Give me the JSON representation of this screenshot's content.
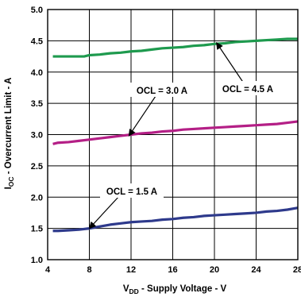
{
  "chart_data": {
    "type": "line",
    "xlabel": {
      "main": "V",
      "sub": "DD",
      "rest": " - Supply Voltage - V"
    },
    "ylabel": {
      "main": "I",
      "sub": "OC",
      "rest": " - Overcurrent Limit - A"
    },
    "xlim": [
      4,
      28
    ],
    "ylim": [
      1.0,
      5.0
    ],
    "x_ticks": [
      4,
      8,
      12,
      16,
      20,
      24,
      28
    ],
    "y_ticks": [
      1.0,
      1.5,
      2.0,
      2.5,
      3.0,
      3.5,
      4.0,
      4.5,
      5.0
    ],
    "x_tick_labels": [
      "4",
      "8",
      "12",
      "16",
      "20",
      "24",
      "28"
    ],
    "y_tick_labels": [
      "1.0",
      "1.5",
      "2.0",
      "2.5",
      "3.0",
      "3.5",
      "4.0",
      "4.5",
      "5.0"
    ],
    "grid": true,
    "series": [
      {
        "color": "#1e9a4e",
        "x": [
          4.5,
          5,
          6,
          7,
          7.5,
          8,
          9,
          10,
          11,
          12,
          13,
          14,
          15,
          16,
          17,
          18,
          19,
          20,
          21,
          22,
          23,
          24,
          25,
          26,
          27,
          28
        ],
        "y": [
          4.25,
          4.25,
          4.25,
          4.25,
          4.25,
          4.27,
          4.28,
          4.3,
          4.31,
          4.33,
          4.34,
          4.36,
          4.38,
          4.39,
          4.4,
          4.42,
          4.43,
          4.45,
          4.46,
          4.48,
          4.49,
          4.5,
          4.51,
          4.52,
          4.53,
          4.53
        ]
      },
      {
        "color": "#b41f86",
        "x": [
          4.5,
          5,
          6,
          7,
          8,
          9,
          10,
          11,
          12,
          13,
          14,
          15,
          16,
          17,
          18,
          19,
          20,
          21,
          22,
          23,
          24,
          25,
          26,
          27,
          28
        ],
        "y": [
          2.85,
          2.87,
          2.88,
          2.9,
          2.92,
          2.94,
          2.96,
          2.98,
          3.0,
          3.02,
          3.03,
          3.05,
          3.06,
          3.08,
          3.09,
          3.1,
          3.11,
          3.12,
          3.13,
          3.14,
          3.15,
          3.16,
          3.17,
          3.19,
          3.21
        ]
      },
      {
        "color": "#2e3a8c",
        "x": [
          4.5,
          5,
          6,
          7,
          8,
          9,
          10,
          11,
          12,
          13,
          14,
          15,
          16,
          17,
          18,
          19,
          20,
          21,
          22,
          23,
          24,
          25,
          26,
          27,
          28
        ],
        "y": [
          1.46,
          1.46,
          1.47,
          1.48,
          1.5,
          1.53,
          1.56,
          1.58,
          1.6,
          1.61,
          1.62,
          1.64,
          1.65,
          1.67,
          1.68,
          1.7,
          1.71,
          1.72,
          1.73,
          1.74,
          1.75,
          1.77,
          1.78,
          1.8,
          1.83
        ]
      }
    ],
    "annotations": [
      {
        "text": "OCL = 4.5 A",
        "target": [
          20.2,
          4.47
        ]
      },
      {
        "text": "OCL = 3.0 A",
        "target": [
          11.8,
          2.98
        ]
      },
      {
        "text": "OCL = 1.5 A",
        "target": [
          8.0,
          1.5
        ]
      }
    ]
  }
}
